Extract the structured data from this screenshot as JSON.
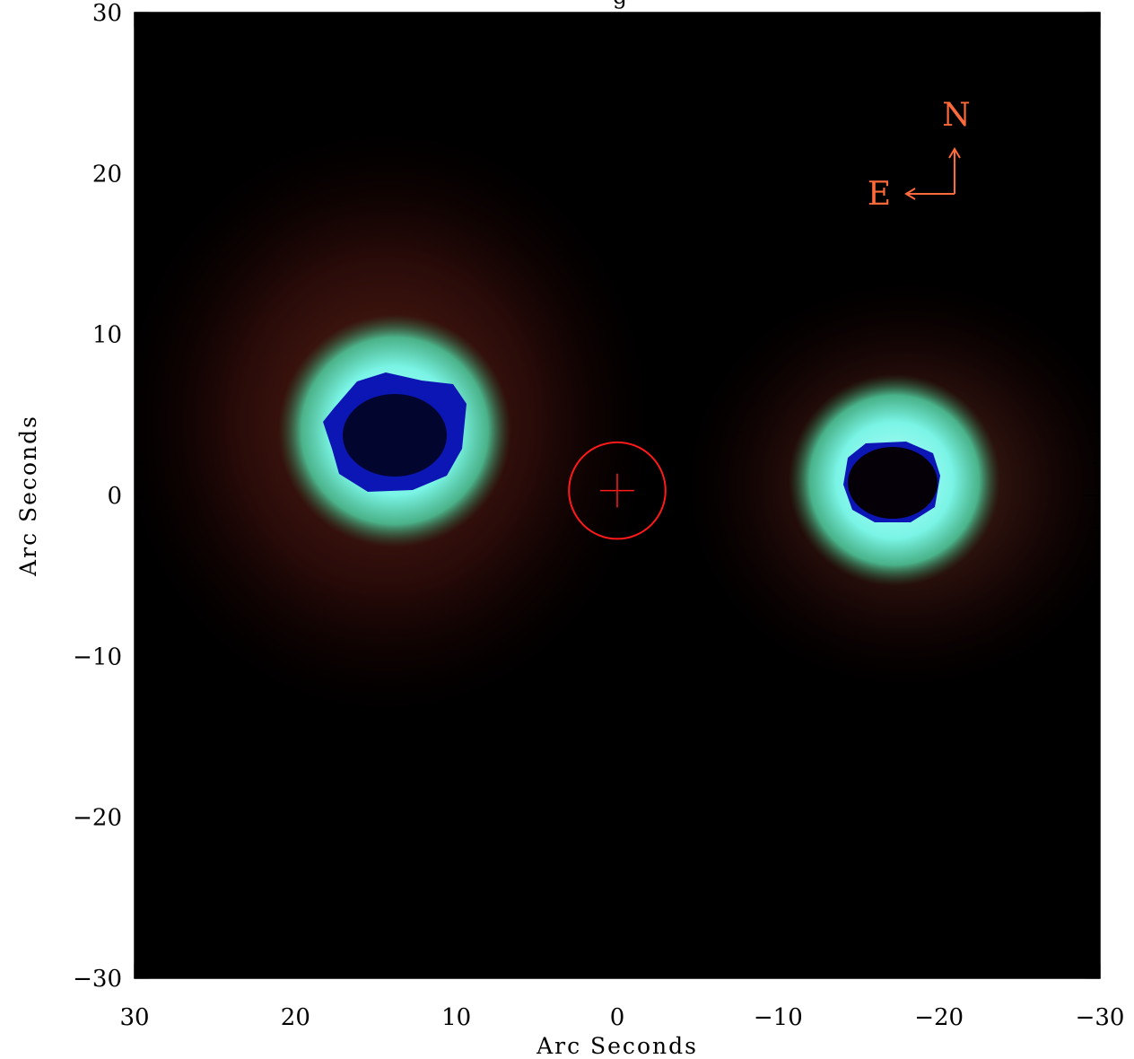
{
  "figure": {
    "title_fragment": "g",
    "x_axis": {
      "label": "Arc Seconds",
      "ticks": [
        {
          "value": 30,
          "label": "30"
        },
        {
          "value": 20,
          "label": "20"
        },
        {
          "value": 10,
          "label": "10"
        },
        {
          "value": 0,
          "label": "0"
        },
        {
          "value": -10,
          "label": "−10"
        },
        {
          "value": -20,
          "label": "−20"
        },
        {
          "value": -30,
          "label": "−30"
        }
      ],
      "range": [
        30,
        -30
      ]
    },
    "y_axis": {
      "label": "Arc Seconds",
      "ticks": [
        {
          "value": 30,
          "label": "30"
        },
        {
          "value": 20,
          "label": "20"
        },
        {
          "value": 10,
          "label": "10"
        },
        {
          "value": 0,
          "label": "0"
        },
        {
          "value": -10,
          "label": "−10"
        },
        {
          "value": -20,
          "label": "−20"
        },
        {
          "value": -30,
          "label": "−30"
        }
      ],
      "range": [
        -30,
        30
      ]
    },
    "compass": {
      "north_label": "N",
      "east_label": "E",
      "color": "#ff6a3a"
    },
    "marker": {
      "type": "circle-with-cross",
      "center": [
        0,
        0.3
      ],
      "radius_arcsec": 3,
      "color": "#ff1a1a"
    },
    "sources": [
      {
        "name": "east-source",
        "center": [
          14.5,
          3.5
        ],
        "core_color": "#0a14b0",
        "ring_color": "#7ef6ee"
      },
      {
        "name": "west-source",
        "center": [
          -17,
          1
        ],
        "core_color": "#0a14b0",
        "ring_color": "#7ef6ee"
      }
    ],
    "colors": {
      "background": "#000000",
      "halo": "#5a1a14",
      "axis": "#000000"
    }
  }
}
